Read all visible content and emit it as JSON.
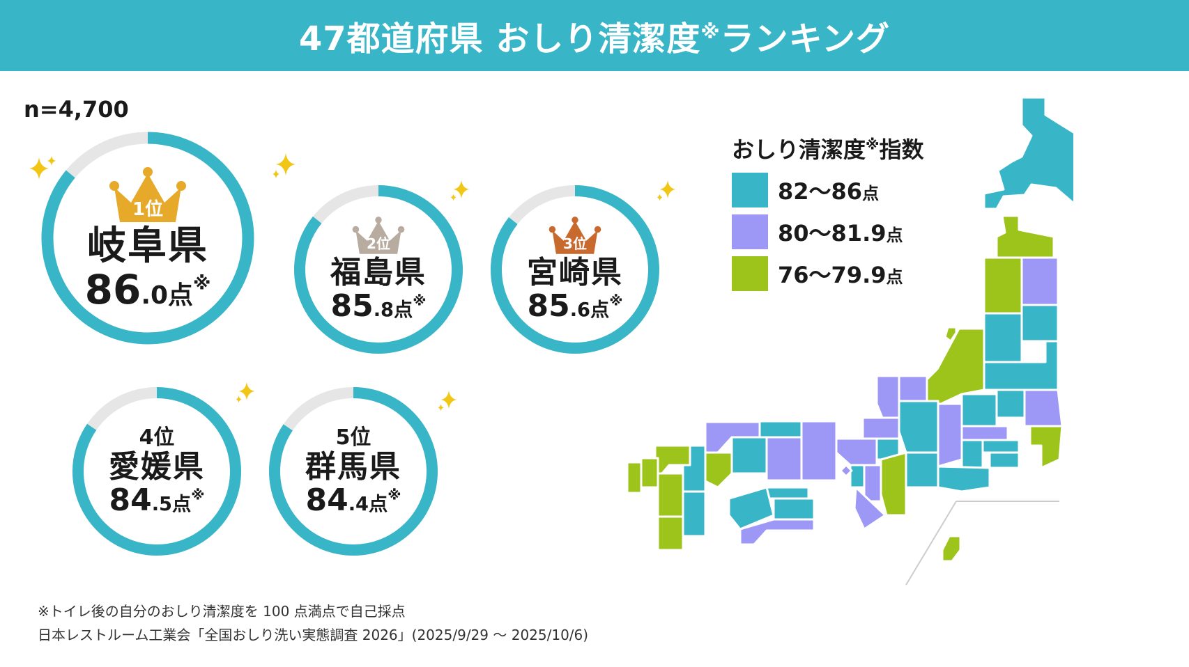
{
  "header": {
    "title": "47都道府県 おしり清潔度",
    "title_mark": "※",
    "title_suffix": "ランキング"
  },
  "sample": "n=4,700",
  "colors": {
    "teal": "#38b6c8",
    "purple": "#9d97f5",
    "green": "#9dc41a",
    "track": "#e6e6e6",
    "gold": "#e6a92a",
    "silver": "#b8aba0",
    "bronze": "#c8692e"
  },
  "rankings": [
    {
      "rank_label": "1位",
      "prefecture": "岐阜県",
      "score_int": "86",
      "score_dec": ".0",
      "unit": "点",
      "mark": "※",
      "progress": 0.86
    },
    {
      "rank_label": "2位",
      "prefecture": "福島県",
      "score_int": "85",
      "score_dec": ".8",
      "unit": "点",
      "mark": "※",
      "progress": 0.858
    },
    {
      "rank_label": "3位",
      "prefecture": "宮崎県",
      "score_int": "85",
      "score_dec": ".6",
      "unit": "点",
      "mark": "※",
      "progress": 0.856
    },
    {
      "rank_label": "4位",
      "prefecture": "愛媛県",
      "score_int": "84",
      "score_dec": ".5",
      "unit": "点",
      "mark": "※",
      "progress": 0.845
    },
    {
      "rank_label": "5位",
      "prefecture": "群馬県",
      "score_int": "84",
      "score_dec": ".4",
      "unit": "点",
      "mark": "※",
      "progress": 0.844
    }
  ],
  "legend": {
    "title": "おしり清潔度",
    "title_mark": "※",
    "title_suffix": "指数",
    "items": [
      {
        "range": "82〜86",
        "unit": "点",
        "color": "#38b6c8"
      },
      {
        "range": "80〜81.9",
        "unit": "点",
        "color": "#9d97f5"
      },
      {
        "range": "76〜79.9",
        "unit": "点",
        "color": "#9dc41a"
      }
    ]
  },
  "footnote": {
    "line1": "※トイレ後の自分のおしり清潔度を 100 点満点で自己採点",
    "line2": "日本レストルーム工業会「全国おしり洗い実態調査 2026」(2025/9/29 〜 2025/10/6)"
  }
}
